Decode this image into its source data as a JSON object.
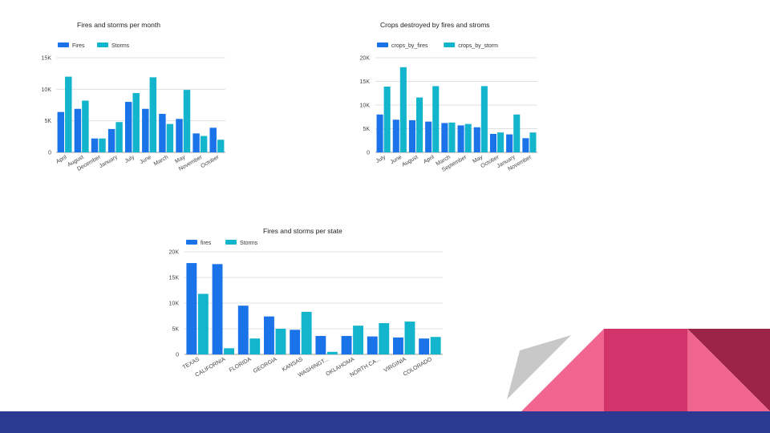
{
  "colors": {
    "series_primary": "#1a73e8",
    "series_secondary": "#12b5cb",
    "gridline": "#e0e0e0",
    "axis_text": "#444444",
    "bottom_bar": "#2b3990",
    "deco_pink": "#f0658f",
    "deco_magenta": "#d1346a",
    "deco_maroon": "#9b2348",
    "deco_gray": "#c8c8c8"
  },
  "chart_data": [
    {
      "type": "bar",
      "title": "Fires and storms per month",
      "categories": [
        "April",
        "August",
        "December",
        "January",
        "July",
        "June",
        "March",
        "May",
        "November",
        "October"
      ],
      "series": [
        {
          "name": "Fires",
          "values": [
            6400,
            6900,
            2200,
            3700,
            8000,
            6900,
            6100,
            5300,
            3000,
            3900
          ]
        },
        {
          "name": "Storms",
          "values": [
            12000,
            8200,
            2200,
            4800,
            9400,
            11900,
            4500,
            9900,
            2600,
            2000
          ]
        }
      ],
      "ylim": [
        0,
        15000
      ],
      "yticks": [
        0,
        5000,
        10000,
        15000
      ],
      "ytick_labels": [
        "0",
        "5K",
        "10K",
        "15K"
      ],
      "legend": "top-left",
      "grid": true
    },
    {
      "type": "bar",
      "title": "Crops destroyed by fires and stroms",
      "categories": [
        "July",
        "June",
        "August",
        "April",
        "March",
        "September",
        "May",
        "October",
        "January",
        "November"
      ],
      "series": [
        {
          "name": "crops_by_fires",
          "values": [
            8000,
            6900,
            6800,
            6500,
            6200,
            5700,
            5300,
            3900,
            3800,
            3000
          ]
        },
        {
          "name": "crops_by_storm",
          "values": [
            13900,
            18000,
            11600,
            14000,
            6300,
            6000,
            14000,
            4200,
            8000,
            4200
          ]
        }
      ],
      "ylim": [
        0,
        20000
      ],
      "yticks": [
        0,
        5000,
        10000,
        15000,
        20000
      ],
      "ytick_labels": [
        "0",
        "5K",
        "10K",
        "15K",
        "20K"
      ],
      "legend": "top-left",
      "grid": true
    },
    {
      "type": "bar",
      "title": "Fires and storms per state",
      "categories": [
        "TEXAS",
        "CALIFORNIA",
        "FLORIDA",
        "GEORGIA",
        "KANSAS",
        "WASHINGT...",
        "OKLAHOMA",
        "NORTH CA...",
        "VIRGINIA",
        "COLORADO"
      ],
      "series": [
        {
          "name": "fires",
          "values": [
            17800,
            17600,
            9500,
            7400,
            4800,
            3600,
            3600,
            3500,
            3300,
            3100
          ]
        },
        {
          "name": "Storms",
          "values": [
            11800,
            1200,
            3100,
            5000,
            8300,
            500,
            5600,
            6100,
            6400,
            3400
          ]
        }
      ],
      "ylim": [
        0,
        20000
      ],
      "yticks": [
        0,
        5000,
        10000,
        15000,
        20000
      ],
      "ytick_labels": [
        "0",
        "5K",
        "10K",
        "15K",
        "20K"
      ],
      "legend": "top-left",
      "grid": true
    }
  ]
}
